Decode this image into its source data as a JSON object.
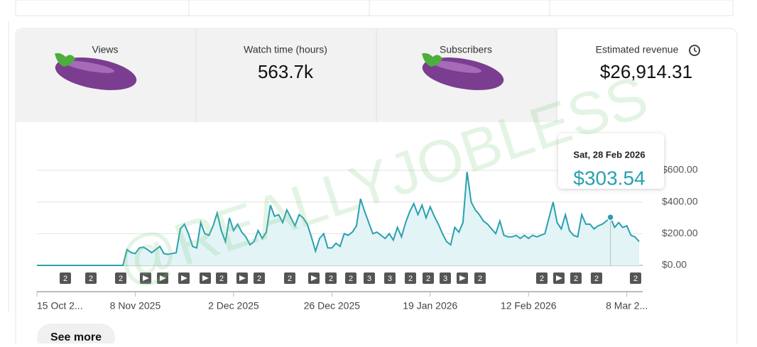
{
  "cards": [
    {
      "title": "Views"
    },
    {
      "title": "Watch time (hours)",
      "value": "563.7k"
    },
    {
      "title": "Subscribers"
    },
    {
      "title": "Estimated revenue",
      "value": "$26,914.31"
    }
  ],
  "chart_data": {
    "type": "line",
    "values": [
      0,
      0,
      0,
      0,
      0,
      0,
      0,
      0,
      0,
      0,
      0,
      0,
      0,
      0,
      0,
      0,
      0,
      0,
      0,
      0,
      0,
      0,
      100,
      80,
      75,
      110,
      115,
      100,
      80,
      100,
      120,
      75,
      70,
      75,
      80,
      230,
      260,
      200,
      120,
      110,
      270,
      200,
      190,
      250,
      330,
      220,
      150,
      300,
      220,
      260,
      210,
      180,
      130,
      150,
      220,
      170,
      210,
      380,
      310,
      320,
      270,
      350,
      300,
      250,
      320,
      300,
      260,
      180,
      90,
      170,
      200,
      110,
      110,
      140,
      120,
      200,
      190,
      210,
      250,
      420,
      340,
      270,
      200,
      210,
      190,
      170,
      200,
      160,
      240,
      180,
      270,
      340,
      390,
      320,
      380,
      300,
      370,
      310,
      260,
      200,
      150,
      130,
      240,
      210,
      270,
      590,
      400,
      350,
      320,
      280,
      260,
      230,
      200,
      280,
      190,
      180,
      180,
      190,
      170,
      190,
      170,
      190,
      180,
      190,
      200,
      300,
      400,
      270,
      230,
      320,
      220,
      190,
      180,
      320,
      260,
      260,
      230,
      250,
      260,
      280,
      303.54,
      240,
      270,
      240,
      250,
      190,
      180,
      150
    ],
    "color": "#2aa0b0",
    "xlim": [
      0,
      147
    ],
    "xticks": [
      {
        "value": 0,
        "label": "15 Oct 2..."
      },
      {
        "value": 24,
        "label": "8 Nov 2025"
      },
      {
        "value": 48,
        "label": "2 Dec 2025"
      },
      {
        "value": 72,
        "label": "26 Dec 2025"
      },
      {
        "value": 96,
        "label": "19 Jan 2026"
      },
      {
        "value": 120,
        "label": "12 Feb 2026"
      },
      {
        "value": 144,
        "label": "8 Mar 2..."
      }
    ],
    "ylim": [
      0,
      600
    ],
    "yticks": [
      {
        "value": 0,
        "label": "$0.00"
      },
      {
        "value": 200,
        "label": "$200.00"
      },
      {
        "value": 400,
        "label": "$400.00"
      },
      {
        "value": 600,
        "label": "$600.00"
      }
    ],
    "grid": true,
    "tooltip": {
      "title": "Sat, 28 Feb 2026",
      "value": 303.54,
      "label": "$303.54"
    },
    "markers": [
      "2",
      "2",
      "2",
      null,
      null,
      null,
      null,
      "2",
      null,
      "2",
      "2",
      null,
      "2",
      "2",
      "3",
      "3",
      "2",
      "2",
      "3",
      null,
      "2",
      "2",
      null,
      "2",
      "2",
      "2"
    ]
  },
  "watermark": "@REALLYJOBLESS",
  "button": "See more"
}
